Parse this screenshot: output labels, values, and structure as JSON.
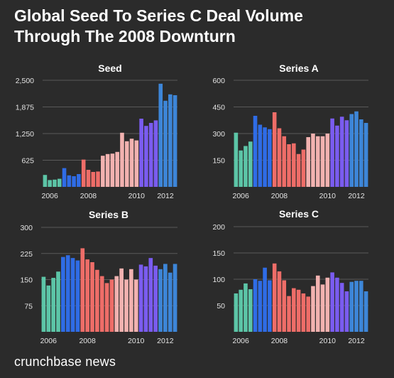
{
  "title_lines": [
    "Global Seed To Series C Deal Volume",
    "Through The 2008 Downturn"
  ],
  "brand": "crunchbase news",
  "era_colors": [
    "#5cc5a7",
    "#2f6ce6",
    "#ee6d68",
    "#f2b2b0",
    "#7a5cf0",
    "#3d86d8"
  ],
  "chart_data": [
    {
      "type": "bar",
      "title": "Seed",
      "x": [
        "2006",
        "2008",
        "2010",
        "2012"
      ],
      "ylim": [
        0,
        2500
      ],
      "yticks": [
        "625",
        "1,250",
        "1,875",
        "2,500"
      ],
      "grid": true,
      "bars": [
        {
          "value": 280,
          "era": 0
        },
        {
          "value": 160,
          "era": 0
        },
        {
          "value": 170,
          "era": 0
        },
        {
          "value": 190,
          "era": 0
        },
        {
          "value": 440,
          "era": 1
        },
        {
          "value": 270,
          "era": 1
        },
        {
          "value": 250,
          "era": 1
        },
        {
          "value": 300,
          "era": 1
        },
        {
          "value": 640,
          "era": 2
        },
        {
          "value": 400,
          "era": 2
        },
        {
          "value": 350,
          "era": 2
        },
        {
          "value": 360,
          "era": 2
        },
        {
          "value": 730,
          "era": 3
        },
        {
          "value": 770,
          "era": 3
        },
        {
          "value": 780,
          "era": 3
        },
        {
          "value": 820,
          "era": 3
        },
        {
          "value": 1270,
          "era": 3
        },
        {
          "value": 1070,
          "era": 3
        },
        {
          "value": 1130,
          "era": 3
        },
        {
          "value": 1090,
          "era": 3
        },
        {
          "value": 1600,
          "era": 4
        },
        {
          "value": 1430,
          "era": 4
        },
        {
          "value": 1500,
          "era": 4
        },
        {
          "value": 1560,
          "era": 4
        },
        {
          "value": 2420,
          "era": 5
        },
        {
          "value": 2020,
          "era": 5
        },
        {
          "value": 2170,
          "era": 5
        },
        {
          "value": 2150,
          "era": 5
        }
      ]
    },
    {
      "type": "bar",
      "title": "Series A",
      "x": [
        "2006",
        "2008",
        "2010",
        "2012"
      ],
      "ylim": [
        0,
        600
      ],
      "yticks": [
        "150",
        "300",
        "450",
        "600"
      ],
      "grid": true,
      "bars": [
        {
          "value": 305,
          "era": 0
        },
        {
          "value": 205,
          "era": 0
        },
        {
          "value": 230,
          "era": 0
        },
        {
          "value": 255,
          "era": 0
        },
        {
          "value": 400,
          "era": 1
        },
        {
          "value": 350,
          "era": 1
        },
        {
          "value": 335,
          "era": 1
        },
        {
          "value": 325,
          "era": 1
        },
        {
          "value": 420,
          "era": 2
        },
        {
          "value": 330,
          "era": 2
        },
        {
          "value": 285,
          "era": 2
        },
        {
          "value": 240,
          "era": 2
        },
        {
          "value": 245,
          "era": 2
        },
        {
          "value": 185,
          "era": 2
        },
        {
          "value": 210,
          "era": 2
        },
        {
          "value": 280,
          "era": 3
        },
        {
          "value": 300,
          "era": 3
        },
        {
          "value": 285,
          "era": 3
        },
        {
          "value": 285,
          "era": 3
        },
        {
          "value": 300,
          "era": 3
        },
        {
          "value": 385,
          "era": 4
        },
        {
          "value": 345,
          "era": 4
        },
        {
          "value": 395,
          "era": 4
        },
        {
          "value": 375,
          "era": 4
        },
        {
          "value": 410,
          "era": 5
        },
        {
          "value": 425,
          "era": 5
        },
        {
          "value": 380,
          "era": 5
        },
        {
          "value": 360,
          "era": 5
        }
      ]
    },
    {
      "type": "bar",
      "title": "Series B",
      "x": [
        "2006",
        "2008",
        "2010",
        "2012"
      ],
      "ylim": [
        0,
        300
      ],
      "yticks": [
        "75",
        "150",
        "225",
        "300"
      ],
      "grid": true,
      "bars": [
        {
          "value": 158,
          "era": 0
        },
        {
          "value": 133,
          "era": 0
        },
        {
          "value": 155,
          "era": 0
        },
        {
          "value": 173,
          "era": 0
        },
        {
          "value": 215,
          "era": 1
        },
        {
          "value": 220,
          "era": 1
        },
        {
          "value": 212,
          "era": 1
        },
        {
          "value": 205,
          "era": 1
        },
        {
          "value": 240,
          "era": 2
        },
        {
          "value": 208,
          "era": 2
        },
        {
          "value": 200,
          "era": 2
        },
        {
          "value": 178,
          "era": 2
        },
        {
          "value": 160,
          "era": 2
        },
        {
          "value": 140,
          "era": 2
        },
        {
          "value": 150,
          "era": 2
        },
        {
          "value": 160,
          "era": 3
        },
        {
          "value": 182,
          "era": 3
        },
        {
          "value": 150,
          "era": 3
        },
        {
          "value": 180,
          "era": 3
        },
        {
          "value": 150,
          "era": 3
        },
        {
          "value": 193,
          "era": 4
        },
        {
          "value": 188,
          "era": 4
        },
        {
          "value": 212,
          "era": 4
        },
        {
          "value": 190,
          "era": 4
        },
        {
          "value": 180,
          "era": 5
        },
        {
          "value": 195,
          "era": 5
        },
        {
          "value": 170,
          "era": 5
        },
        {
          "value": 195,
          "era": 5
        }
      ]
    },
    {
      "type": "bar",
      "title": "Series C",
      "x": [
        "2006",
        "2008",
        "2010",
        "2012"
      ],
      "ylim": [
        0,
        200
      ],
      "yticks": [
        "50",
        "100",
        "150",
        "200"
      ],
      "grid": true,
      "bars": [
        {
          "value": 73,
          "era": 0
        },
        {
          "value": 80,
          "era": 0
        },
        {
          "value": 92,
          "era": 0
        },
        {
          "value": 81,
          "era": 0
        },
        {
          "value": 100,
          "era": 1
        },
        {
          "value": 97,
          "era": 1
        },
        {
          "value": 122,
          "era": 1
        },
        {
          "value": 98,
          "era": 1
        },
        {
          "value": 130,
          "era": 2
        },
        {
          "value": 115,
          "era": 2
        },
        {
          "value": 98,
          "era": 2
        },
        {
          "value": 68,
          "era": 2
        },
        {
          "value": 83,
          "era": 2
        },
        {
          "value": 80,
          "era": 2
        },
        {
          "value": 73,
          "era": 2
        },
        {
          "value": 67,
          "era": 2
        },
        {
          "value": 87,
          "era": 3
        },
        {
          "value": 107,
          "era": 3
        },
        {
          "value": 90,
          "era": 3
        },
        {
          "value": 103,
          "era": 3
        },
        {
          "value": 113,
          "era": 4
        },
        {
          "value": 103,
          "era": 4
        },
        {
          "value": 93,
          "era": 4
        },
        {
          "value": 77,
          "era": 4
        },
        {
          "value": 95,
          "era": 5
        },
        {
          "value": 97,
          "era": 5
        },
        {
          "value": 97,
          "era": 5
        },
        {
          "value": 77,
          "era": 5
        }
      ]
    }
  ]
}
